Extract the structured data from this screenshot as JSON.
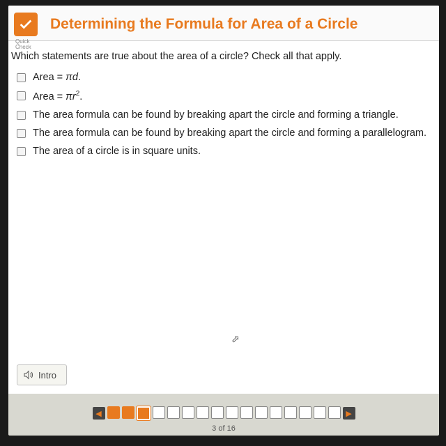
{
  "header": {
    "badge_label_1": "Quick",
    "badge_label_2": "Check",
    "title": "Determining the Formula for Area of a Circle"
  },
  "question": {
    "prompt": "Which statements are true about the area of a circle? Check all that apply.",
    "options": [
      {
        "prefix": "Area = ",
        "math": "πd",
        "suffix": "."
      },
      {
        "prefix": "Area = ",
        "math": "πr",
        "sup": "2",
        "suffix": "."
      },
      {
        "text": "The area formula can be found by breaking apart the circle and forming a triangle."
      },
      {
        "text": "The area formula can be found by breaking apart the circle and forming a parallelogram."
      },
      {
        "text": "The area of a circle is in square units."
      }
    ]
  },
  "footer": {
    "intro_label": "Intro",
    "page_text": "3 of 16",
    "total_pages": 16,
    "current_page": 3,
    "completed_pages": [
      1,
      2
    ]
  },
  "colors": {
    "accent": "#e87a1f",
    "bg": "#ffffff",
    "text": "#222222"
  }
}
